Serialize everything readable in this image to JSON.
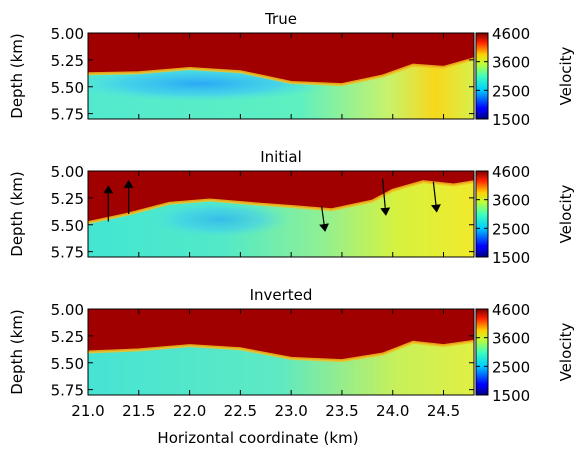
{
  "chart_data": [
    {
      "type": "heatmap",
      "title": "True",
      "xlabel": "",
      "ylabel": "Depth (km)",
      "xlim": [
        21.0,
        24.8
      ],
      "ylim": [
        5.0,
        5.8
      ],
      "yticks": [
        "5.00",
        "5.25",
        "5.50",
        "5.75"
      ],
      "colorbar": {
        "label": "Velocity",
        "ticks": [
          "4600",
          "3600",
          "2500",
          "1500"
        ],
        "range": [
          1500,
          4600
        ]
      },
      "interface_depth": [
        [
          21.0,
          5.38
        ],
        [
          21.5,
          5.37
        ],
        [
          22.0,
          5.33
        ],
        [
          22.5,
          5.36
        ],
        [
          23.0,
          5.46
        ],
        [
          23.5,
          5.48
        ],
        [
          23.9,
          5.4
        ],
        [
          24.2,
          5.3
        ],
        [
          24.5,
          5.32
        ],
        [
          24.8,
          5.24
        ]
      ],
      "annotations": []
    },
    {
      "type": "heatmap",
      "title": "Initial",
      "xlabel": "",
      "ylabel": "Depth (km)",
      "xlim": [
        21.0,
        24.8
      ],
      "ylim": [
        5.0,
        5.8
      ],
      "yticks": [
        "5.00",
        "5.25",
        "5.50",
        "5.75"
      ],
      "colorbar": {
        "label": "Velocity",
        "ticks": [
          "4600",
          "3600",
          "2500",
          "1500"
        ],
        "range": [
          1500,
          4600
        ]
      },
      "interface_depth": [
        [
          21.0,
          5.48
        ],
        [
          21.4,
          5.4
        ],
        [
          21.8,
          5.3
        ],
        [
          22.2,
          5.27
        ],
        [
          22.7,
          5.31
        ],
        [
          23.0,
          5.33
        ],
        [
          23.4,
          5.36
        ],
        [
          23.8,
          5.28
        ],
        [
          24.0,
          5.18
        ],
        [
          24.3,
          5.1
        ],
        [
          24.6,
          5.13
        ],
        [
          24.8,
          5.1
        ]
      ],
      "annotations": [
        {
          "type": "arrow",
          "x": 21.2,
          "from": 5.47,
          "to": 5.17
        },
        {
          "type": "arrow",
          "x": 21.4,
          "from": 5.4,
          "to": 5.12
        },
        {
          "type": "arrow",
          "x": 23.3,
          "from": 5.33,
          "to": 5.53
        },
        {
          "type": "arrow",
          "x": 23.9,
          "from": 5.07,
          "to": 5.38
        },
        {
          "type": "arrow",
          "x": 24.4,
          "from": 5.1,
          "to": 5.35
        }
      ]
    },
    {
      "type": "heatmap",
      "title": "Inverted",
      "xlabel": "Horizontal coordinate (km)",
      "ylabel": "Depth (km)",
      "xlim": [
        21.0,
        24.8
      ],
      "ylim": [
        5.0,
        5.8
      ],
      "xticks": [
        "21.0",
        "21.5",
        "22.0",
        "22.5",
        "23.0",
        "23.5",
        "24.0",
        "24.5"
      ],
      "yticks": [
        "5.00",
        "5.25",
        "5.50",
        "5.75"
      ],
      "colorbar": {
        "label": "Velocity",
        "ticks": [
          "4600",
          "3600",
          "2500",
          "1500"
        ],
        "range": [
          1500,
          4600
        ]
      },
      "interface_depth": [
        [
          21.0,
          5.4
        ],
        [
          21.5,
          5.38
        ],
        [
          22.0,
          5.34
        ],
        [
          22.5,
          5.37
        ],
        [
          23.0,
          5.46
        ],
        [
          23.5,
          5.48
        ],
        [
          23.9,
          5.42
        ],
        [
          24.2,
          5.31
        ],
        [
          24.5,
          5.34
        ],
        [
          24.8,
          5.3
        ]
      ],
      "annotations": []
    }
  ]
}
